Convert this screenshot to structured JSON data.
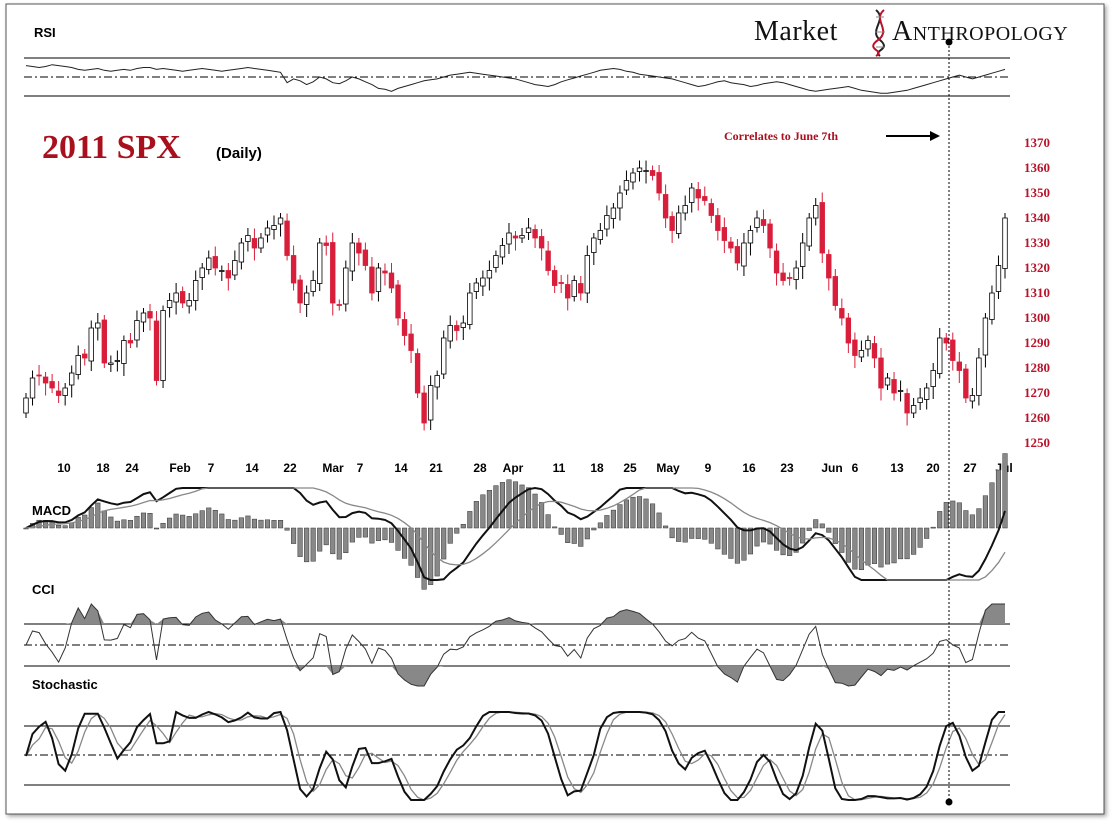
{
  "logo": {
    "left": "Market",
    "right": "Anthropology",
    "icon": "dna-helix-icon"
  },
  "chart_data": {
    "type": "candlestick",
    "title": "2011 SPX",
    "subtitle": "(Daily)",
    "annotation": "Correlates to June 7th",
    "ylim": [
      1250,
      1370
    ],
    "y_ticks": [
      "1370",
      "1360",
      "1350",
      "1340",
      "1330",
      "1320",
      "1310",
      "1300",
      "1290",
      "1280",
      "1270",
      "1260",
      "1250"
    ],
    "x_tick_labels": [
      "10",
      "18",
      "24",
      "Feb",
      "7",
      "14",
      "22",
      "Mar",
      "7",
      "14",
      "21",
      "28",
      "Apr",
      "11",
      "18",
      "25",
      "May",
      "9",
      "16",
      "23",
      "Jun",
      "6",
      "13",
      "20",
      "27",
      "Jul"
    ],
    "closes": [
      1268,
      1276,
      1277,
      1274,
      1272,
      1269,
      1272,
      1278,
      1285,
      1284,
      1296,
      1298,
      1282,
      1282,
      1283,
      1291,
      1290,
      1299,
      1302,
      1300,
      1275,
      1303,
      1307,
      1310,
      1306,
      1307,
      1315,
      1320,
      1324,
      1320,
      1319,
      1316,
      1323,
      1330,
      1333,
      1328,
      1332,
      1336,
      1337,
      1340,
      1325,
      1314,
      1306,
      1310,
      1315,
      1330,
      1329,
      1306,
      1305,
      1320,
      1330,
      1326,
      1321,
      1310,
      1320,
      1318,
      1312,
      1300,
      1293,
      1287,
      1270,
      1258,
      1273,
      1277,
      1292,
      1297,
      1295,
      1298,
      1310,
      1314,
      1316,
      1319,
      1325,
      1329,
      1334,
      1332,
      1333,
      1336,
      1332,
      1328,
      1319,
      1313,
      1314,
      1308,
      1315,
      1310,
      1325,
      1332,
      1335,
      1341,
      1344,
      1350,
      1355,
      1358,
      1360,
      1359,
      1357,
      1350,
      1340,
      1335,
      1342,
      1345,
      1352,
      1348,
      1347,
      1341,
      1335,
      1331,
      1328,
      1322,
      1330,
      1335,
      1340,
      1337,
      1328,
      1318,
      1315,
      1316,
      1320,
      1330,
      1340,
      1345,
      1326,
      1316,
      1305,
      1300,
      1290,
      1285,
      1287,
      1291,
      1284,
      1272,
      1276,
      1270,
      1271,
      1262,
      1265,
      1268,
      1272,
      1279,
      1292,
      1290,
      1283,
      1279,
      1268,
      1269,
      1284,
      1300,
      1310,
      1321,
      1340
    ],
    "rsi": [
      62,
      61,
      60,
      61,
      63,
      62,
      61,
      60,
      58,
      57,
      58,
      59,
      57,
      56,
      57,
      58,
      57,
      59,
      60,
      60,
      58,
      59,
      58,
      57,
      56,
      57,
      58,
      59,
      58,
      57,
      56,
      57,
      58,
      59,
      60,
      59,
      58,
      57,
      56,
      55,
      44,
      48,
      46,
      42,
      45,
      50,
      48,
      44,
      43,
      46,
      50,
      48,
      45,
      42,
      38,
      37,
      35,
      38,
      40,
      42,
      44,
      46,
      47,
      48,
      50,
      52,
      53,
      54,
      55,
      54,
      53,
      52,
      51,
      50,
      49,
      48,
      46,
      44,
      42,
      41,
      40,
      42,
      45,
      47,
      49,
      51,
      53,
      55,
      57,
      58,
      59,
      58,
      56,
      55,
      53,
      52,
      51,
      50,
      49,
      48,
      46,
      44,
      42,
      40,
      41,
      43,
      45,
      46,
      44,
      43,
      42,
      40,
      41,
      43,
      44,
      45,
      44,
      42,
      40,
      38,
      36,
      35,
      36,
      37,
      38,
      39,
      40,
      38,
      36,
      35,
      34,
      33,
      33,
      34,
      35,
      36,
      38,
      40,
      42,
      44,
      46,
      48,
      50,
      52,
      50,
      48,
      50,
      52,
      54,
      56,
      58
    ]
  },
  "panels": {
    "rsi_label": "RSI",
    "macd_label": "MACD",
    "cci_label": "CCI",
    "stoch_label": "Stochastic"
  },
  "colors": {
    "up": "#ffffff",
    "down": "#d81e3a",
    "accent": "#a8101e"
  }
}
